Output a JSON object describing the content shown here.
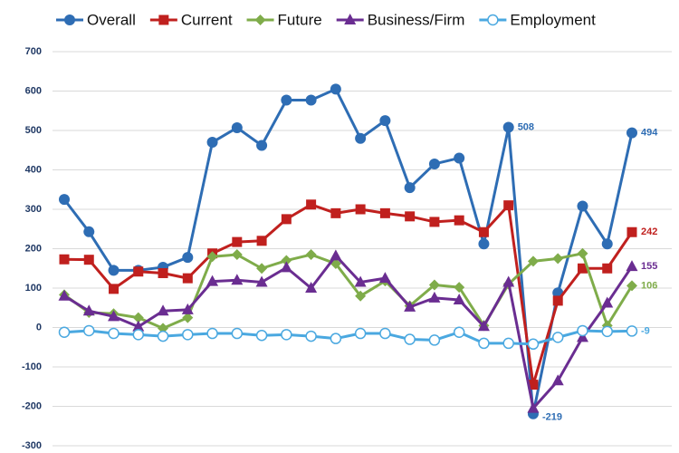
{
  "chart_data": {
    "type": "line",
    "ylim": [
      -300,
      700
    ],
    "yticks": [
      -300,
      -200,
      -100,
      0,
      100,
      200,
      300,
      400,
      500,
      600,
      700
    ],
    "grid": true,
    "series": [
      {
        "name": "Overall",
        "color": "#2e6db4",
        "values": [
          325,
          243,
          145,
          145,
          153,
          178,
          470,
          507,
          462,
          577,
          577,
          605,
          480,
          525,
          355,
          415,
          430,
          212,
          508,
          -219,
          88,
          308,
          212,
          494
        ]
      },
      {
        "name": "Current",
        "color": "#c0201e",
        "values": [
          173,
          172,
          98,
          142,
          138,
          125,
          188,
          217,
          220,
          275,
          312,
          290,
          300,
          290,
          282,
          268,
          272,
          242,
          310,
          -145,
          68,
          150,
          150,
          242
        ]
      },
      {
        "name": "Future",
        "color": "#7fac4a",
        "values": [
          83,
          38,
          35,
          25,
          -2,
          25,
          180,
          185,
          150,
          170,
          185,
          162,
          80,
          118,
          55,
          108,
          102,
          5,
          110,
          168,
          175,
          188,
          5,
          106
        ]
      },
      {
        "name": "Business/Firm",
        "color": "#6a2d91",
        "values": [
          80,
          42,
          28,
          2,
          42,
          45,
          117,
          120,
          115,
          152,
          100,
          182,
          115,
          125,
          52,
          75,
          70,
          3,
          115,
          -205,
          -135,
          -25,
          62,
          155
        ]
      },
      {
        "name": "Employment",
        "color": "#4aa8e0",
        "values": [
          -12,
          -8,
          -15,
          -18,
          -22,
          -18,
          -15,
          -15,
          -20,
          -18,
          -22,
          -28,
          -15,
          -15,
          -30,
          -32,
          -12,
          -40,
          -40,
          -42,
          -25,
          -8,
          -10,
          -9
        ]
      }
    ]
  }
}
